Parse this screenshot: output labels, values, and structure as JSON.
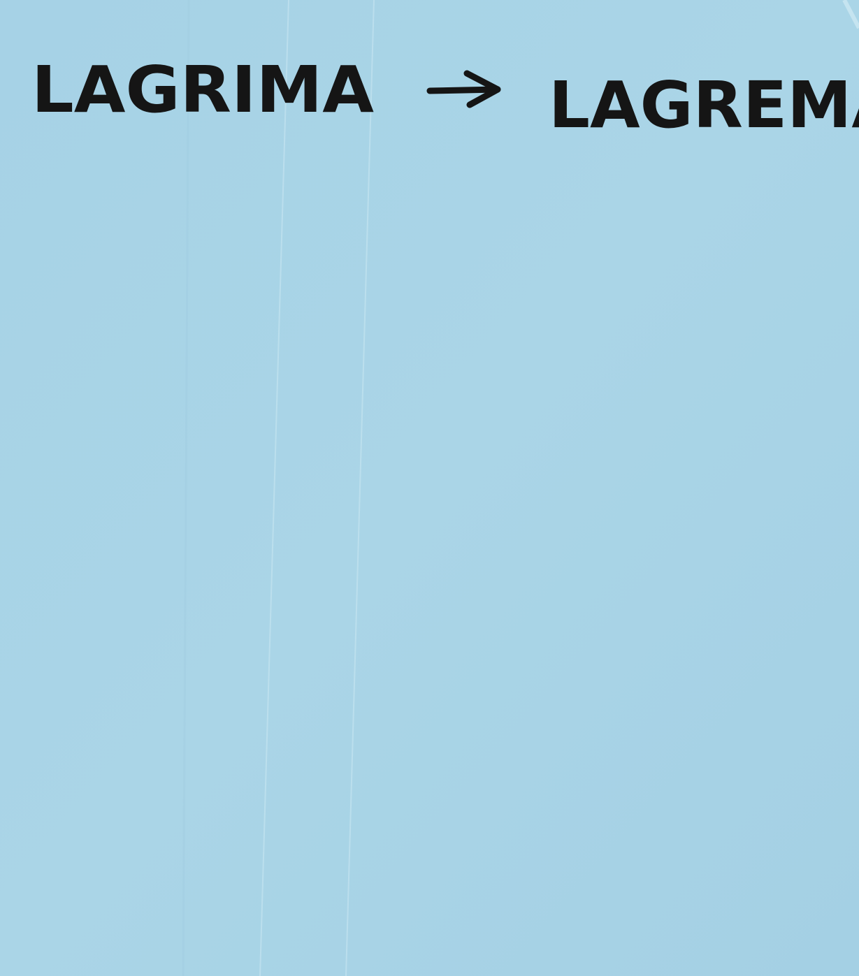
{
  "note": {
    "words": [
      "LAGRIMA",
      "LAGREMA"
    ]
  }
}
